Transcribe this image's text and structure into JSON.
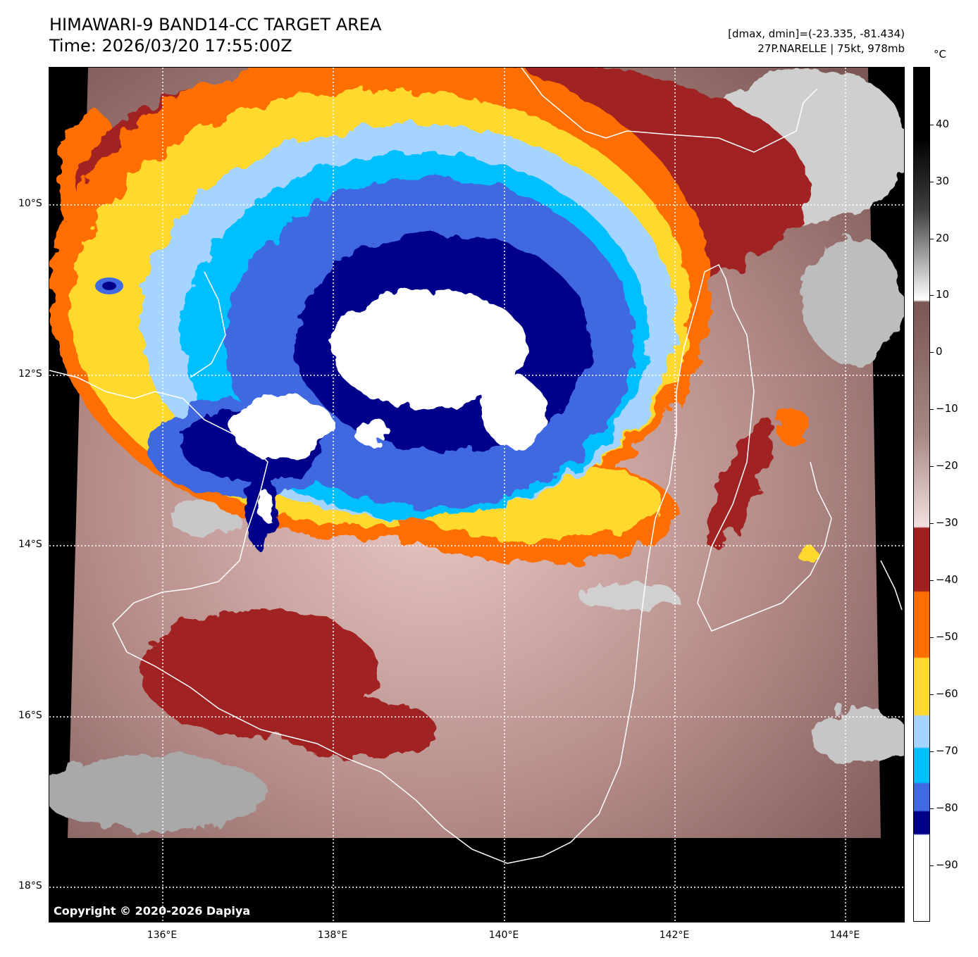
{
  "title": {
    "line1": "HIMAWARI-9 BAND14-CC TARGET AREA",
    "line2": "Time: 2026/03/20 17:55:00Z"
  },
  "info": {
    "line1": "[dmax, dmin]=(-23.335, -81.434)",
    "line2": "27P.NARELLE | 75kt, 978mb"
  },
  "copyright": "Copyright © 2020-2026 Dapiya",
  "lat_labels": [
    "10°S",
    "12°S",
    "14°S",
    "16°S",
    "18°S"
  ],
  "lon_labels": [
    "136°E",
    "138°E",
    "140°E",
    "142°E",
    "144°E"
  ],
  "colorbar": {
    "unit": "°C",
    "ticks": [
      "40",
      "30",
      "20",
      "10",
      "0",
      "−10",
      "−20",
      "−30",
      "−40",
      "−50",
      "−60",
      "−70",
      "−80",
      "−90"
    ]
  },
  "colors": {
    "white": "#ffffff",
    "navy": "#00008b",
    "royal": "#4169e1",
    "sky": "#00bfff",
    "light_sky": "#a4d4ff",
    "gold": "#ffd92f",
    "orange": "#ff6e00",
    "dark_red": "#a02020",
    "brown": "#8a5a58",
    "pink": "#e9c9c6"
  }
}
